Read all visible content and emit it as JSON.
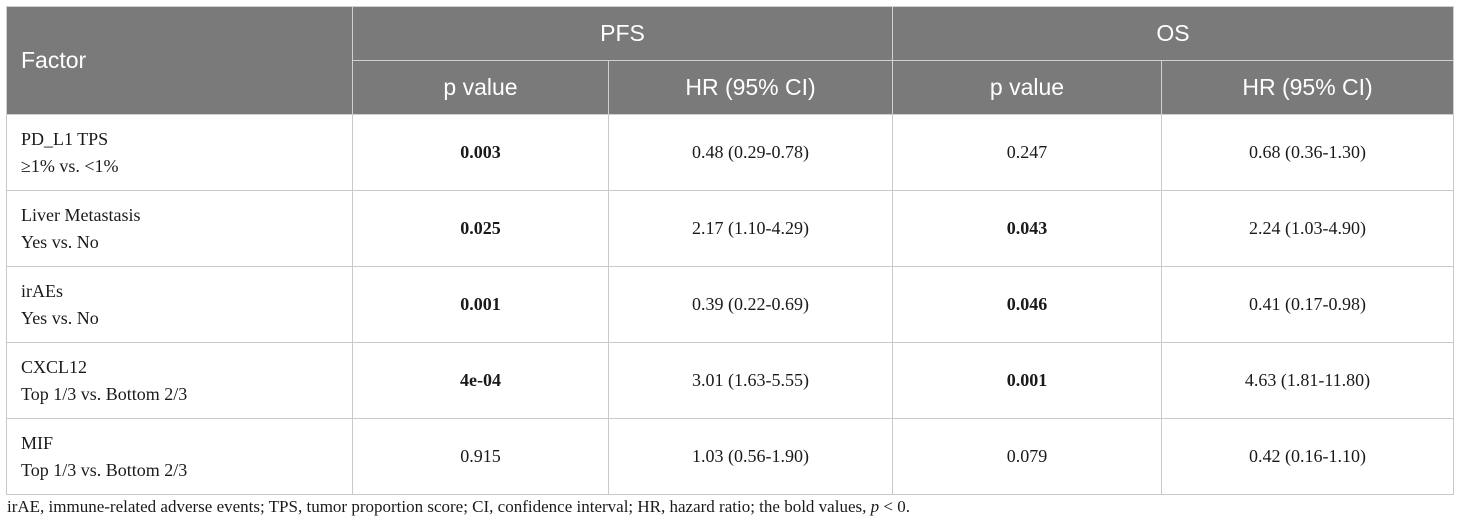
{
  "header": {
    "factor": "Factor",
    "groups": [
      "PFS",
      "OS"
    ],
    "sub": [
      "p value",
      "HR (95% CI)",
      "p value",
      "HR (95% CI)"
    ]
  },
  "rows": [
    {
      "name": "PD_L1 TPS",
      "comparison": "≥1% vs. <1%",
      "pfs_p": "0.003",
      "pfs_p_bold": true,
      "pfs_hr": "0.48 (0.29-0.78)",
      "os_p": "0.247",
      "os_p_bold": false,
      "os_hr": "0.68 (0.36-1.30)"
    },
    {
      "name": "Liver Metastasis",
      "comparison": "Yes vs. No",
      "pfs_p": "0.025",
      "pfs_p_bold": true,
      "pfs_hr": "2.17 (1.10-4.29)",
      "os_p": "0.043",
      "os_p_bold": true,
      "os_hr": "2.24 (1.03-4.90)"
    },
    {
      "name": "irAEs",
      "comparison": "Yes vs. No",
      "pfs_p": "0.001",
      "pfs_p_bold": true,
      "pfs_hr": "0.39 (0.22-0.69)",
      "os_p": "0.046",
      "os_p_bold": true,
      "os_hr": "0.41 (0.17-0.98)"
    },
    {
      "name": "CXCL12",
      "comparison": "Top 1/3 vs. Bottom 2/3",
      "pfs_p": "4e-04",
      "pfs_p_bold": true,
      "pfs_hr": "3.01 (1.63-5.55)",
      "os_p": "0.001",
      "os_p_bold": true,
      "os_hr": "4.63 (1.81-11.80)"
    },
    {
      "name": "MIF",
      "comparison": "Top 1/3 vs. Bottom 2/3",
      "pfs_p": "0.915",
      "pfs_p_bold": false,
      "pfs_hr": "1.03 (0.56-1.90)",
      "os_p": "0.079",
      "os_p_bold": false,
      "os_hr": "0.42 (0.16-1.10)"
    }
  ],
  "footnote": {
    "text": "irAE, immune-related adverse events; TPS, tumor proportion score; CI, confidence interval; HR, hazard ratio; the bold values, ",
    "p_symbol": "p",
    "tail": " < 0."
  },
  "colors": {
    "header_bg": "#7a7a7a",
    "header_text": "#ffffff",
    "border": "#c9c9c9"
  }
}
